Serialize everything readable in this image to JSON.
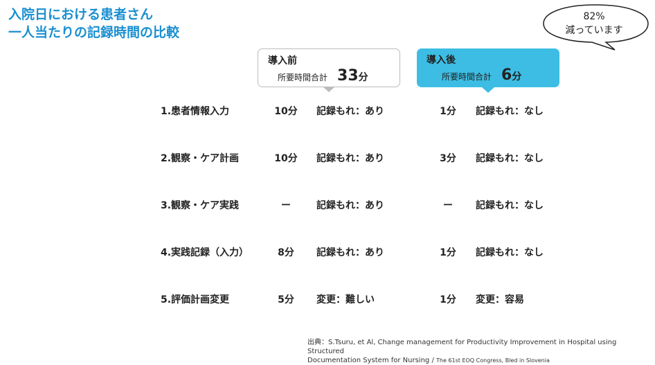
{
  "title": {
    "line1": "入院日における患者さん",
    "line2": "一人当たりの記録時間の比較"
  },
  "callout": {
    "line1": "82%",
    "line2": "減っています"
  },
  "before": {
    "heading": "導入前",
    "total_label": "所要時間合計",
    "total_value": "33",
    "unit": "分"
  },
  "after": {
    "heading": "導入後",
    "total_label": "所要時間合計",
    "total_value": "6",
    "unit": "分"
  },
  "colors": {
    "title": "#1a8fd0",
    "after_box": "#3dbde3"
  },
  "rows": [
    {
      "label": "1.患者情報入力",
      "before_time": "10分",
      "before_note": "記録もれ：あり",
      "after_time": "1分",
      "after_note": "記録もれ：なし"
    },
    {
      "label": "2.観察・ケア計画",
      "before_time": "10分",
      "before_note": "記録もれ：あり",
      "after_time": "3分",
      "after_note": "記録もれ：なし"
    },
    {
      "label": "3.観察・ケア実践",
      "before_time": "ー",
      "before_note": "記録もれ：あり",
      "after_time": "ー",
      "after_note": "記録もれ：なし"
    },
    {
      "label": "4.実践記録（入力）",
      "before_time": "8分",
      "before_note": "記録もれ：あり",
      "after_time": "1分",
      "after_note": "記録もれ：なし"
    },
    {
      "label": "5.評価計画変更",
      "before_time": "5分",
      "before_note": "変更：難しい",
      "after_time": "1分",
      "after_note": "変更：容易"
    }
  ],
  "source": {
    "line1": "出典：S.Tsuru, et Al, Change management for Productivity Improvement in Hospital using Structured",
    "line2": "Documentation System for Nursing / ",
    "line2_small": "The 61st EOQ Congress, Bled in Slovenia"
  }
}
